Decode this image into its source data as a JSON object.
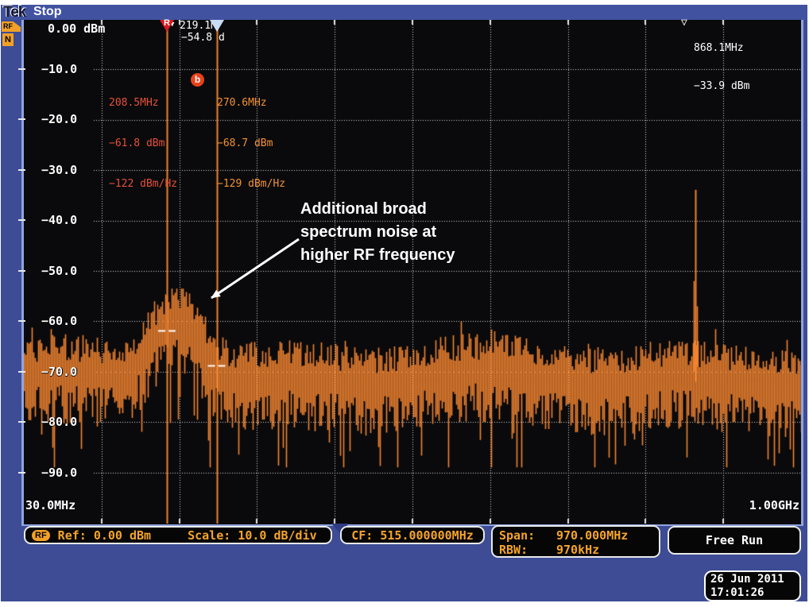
{
  "header": {
    "logo": "Tek",
    "status": "Stop"
  },
  "side": {
    "rf_tab": "RF",
    "n_badge": "N"
  },
  "plot": {
    "ref_level": "0.00 dBm",
    "y_ticks": [
      "−10.0",
      "−20.0",
      "−30.0",
      "−40.0",
      "−50.0",
      "−60.0",
      "−70.0",
      "−80.0",
      "−90.0"
    ],
    "x_start": "30.0MHz",
    "x_end": "1.00GHz"
  },
  "markers": {
    "r": {
      "symbol": "R",
      "readout": [
        "208.5MHz",
        "−61.8 dBm",
        "−122 dBm/Hz"
      ]
    },
    "peak": {
      "glyph": "▼",
      "line1": "219.1M",
      "line2": "−54.8 d"
    },
    "b": {
      "symbol": "b",
      "readout": [
        "270.6MHz",
        "−68.7 dBm",
        "−129 dBm/Hz"
      ]
    },
    "right": {
      "glyph": "▽",
      "readout": [
        "868.1MHz",
        "−33.9 dBm"
      ]
    }
  },
  "annotation": {
    "lines": [
      "Additional broad",
      "spectrum noise at",
      "higher RF frequency"
    ]
  },
  "bottom_bar": {
    "rf_badge": "RF",
    "ref": "Ref: 0.00 dBm",
    "scale": "Scale: 10.0 dB/div",
    "cf": "CF: 515.000000MHz",
    "span_label": "Span:",
    "span_value": "970.000MHz",
    "rbw_label": "RBW:",
    "rbw_value": "970kHz",
    "acq_mode": "Free Run"
  },
  "datetime": {
    "date": "26 Jun 2011",
    "time": "17:01:26"
  },
  "colors": {
    "background_blue": "#3D4C94",
    "titlebar_blue": "#4152A0",
    "plot_border": "#8FA4DC",
    "trace_orange": "#F08330",
    "readout_orange": "#F5A42C",
    "marker_red_text": "#E65038",
    "marker_orange_text": "#F49130",
    "r_triangle_red": "#DC1820",
    "b_triangle_blue": "#C9DCF4",
    "badge_orange": "#F0A028"
  },
  "chart_data": {
    "type": "line",
    "title": "RF spectrum trace",
    "x_unit": "MHz",
    "y_unit": "dBm",
    "x_range_mhz": [
      30,
      1000
    ],
    "y_range_dbm": [
      -100,
      0
    ],
    "x_divisions": 10,
    "y_divisions": 10,
    "ref_level_dbm": 0,
    "scale_db_per_div": 10,
    "center_frequency_mhz": 515,
    "span_mhz": 970,
    "rbw_khz": 970,
    "grid": true,
    "trace_color": "#F08330",
    "noise_floor_dbm": -71,
    "noise_floor_min_dbm": -88,
    "noise_floor_max_dbm": -62,
    "broad_noise_bump": {
      "center_mhz": 219.1,
      "sigma_mhz": 30,
      "peak_dbm": -54.8
    },
    "carrier_spike": {
      "freq_mhz": 868.1,
      "peak_dbm": -33.9
    },
    "markers": [
      {
        "id": "R",
        "freq_mhz": 208.5,
        "amplitude_dbm": -61.8,
        "density_dbm_per_hz": -122
      },
      {
        "id": "b",
        "freq_mhz": 270.6,
        "amplitude_dbm": -68.7,
        "density_dbm_per_hz": -129
      },
      {
        "id": "peak",
        "freq_mhz": 219.1,
        "amplitude_dbm": -54.8
      },
      {
        "id": "right",
        "freq_mhz": 868.1,
        "amplitude_dbm": -33.9
      }
    ]
  }
}
